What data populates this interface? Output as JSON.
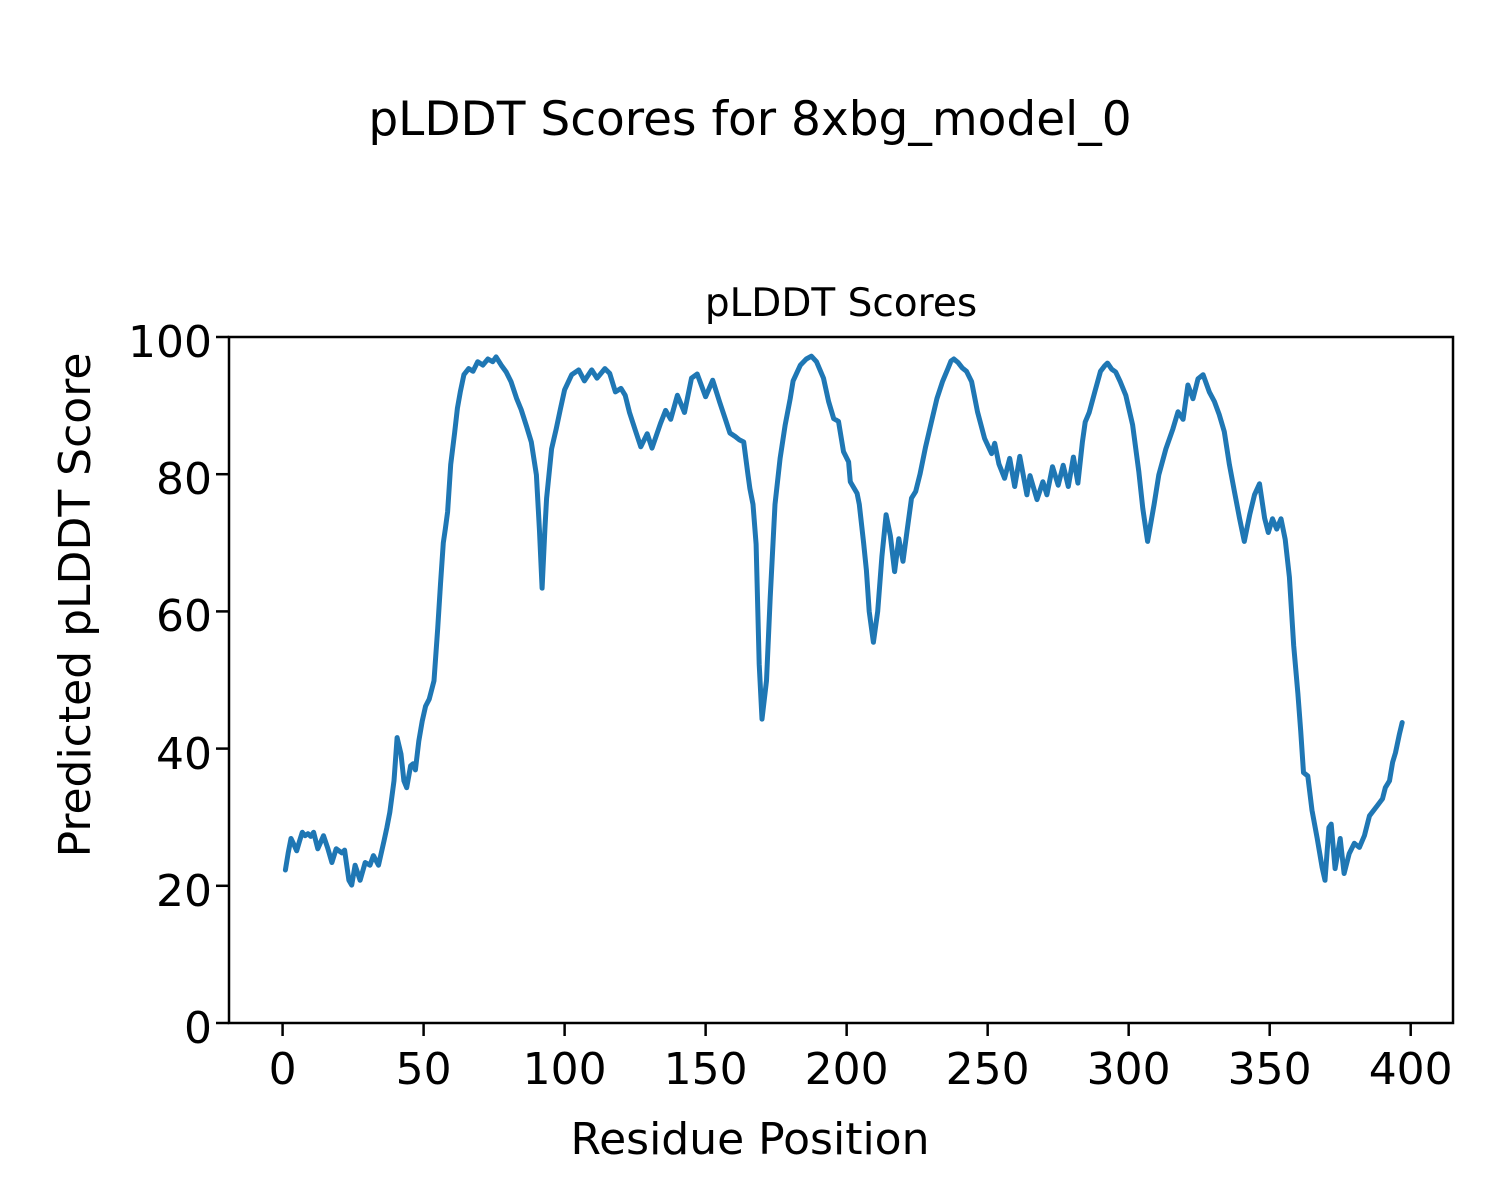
{
  "figure": {
    "suptitle": "pLDDT Scores for 8xbg_model_0",
    "axes_title": "pLDDT Scores",
    "xlabel": "Residue Position",
    "ylabel": "Predicted pLDDT Score"
  },
  "chart_data": {
    "type": "line",
    "title": "pLDDT Scores",
    "suptitle": "pLDDT Scores for 8xbg_model_0",
    "xlabel": "Residue Position",
    "ylabel": "Predicted pLDDT Score",
    "xlim": [
      -19,
      415
    ],
    "ylim": [
      0,
      100
    ],
    "x_ticks": [
      0,
      50,
      100,
      150,
      200,
      250,
      300,
      350,
      400
    ],
    "x_tick_labels": [
      "0",
      "50",
      "100",
      "150",
      "200",
      "250",
      "300",
      "350",
      "400"
    ],
    "y_ticks": [
      0,
      20,
      40,
      60,
      80,
      100
    ],
    "y_tick_labels": [
      "0",
      "20",
      "40",
      "60",
      "80",
      "100"
    ],
    "grid": false,
    "legend": "none",
    "line_color": "#1f77b4",
    "axis_color": "#000000",
    "background_color": "#ffffff",
    "series": [
      {
        "name": "pLDDT",
        "x": [
          1,
          2,
          3,
          4,
          5,
          6,
          7,
          8,
          9,
          10,
          11,
          12.5,
          14.5,
          16,
          17.5,
          19,
          21,
          22,
          23.5,
          24.5,
          25.7,
          27.5,
          29.3,
          31,
          32.2,
          34,
          36,
          37,
          38,
          39.5,
          40.6,
          42,
          43,
          44,
          45.4,
          46.3,
          47.1,
          48.3,
          49.5,
          50.7,
          52,
          53.7,
          55,
          56,
          57,
          57.7,
          58.5,
          59.6,
          61,
          62,
          63,
          64.3,
          66,
          67.5,
          69.2,
          71,
          72.8,
          74.5,
          75.7,
          77.5,
          79.3,
          81,
          83,
          84.6,
          86.5,
          88.2,
          90,
          91.1,
          92,
          93,
          93.6,
          95.4,
          97,
          98.5,
          100,
          102.5,
          105,
          107,
          109.6,
          111.5,
          114.3,
          116,
          118,
          120,
          121.5,
          123,
          125,
          127,
          129.3,
          131,
          134,
          135.8,
          137.6,
          140,
          142.5,
          145,
          147,
          150,
          152.5,
          155,
          157,
          158.6,
          160.5,
          162,
          163.5,
          165,
          165.7,
          166.8,
          167.9,
          169,
          170,
          171.6,
          172.9,
          174.6,
          176.4,
          178.2,
          180,
          181,
          183.6,
          185.7,
          187.5,
          189.3,
          191.8,
          193.6,
          195.4,
          197.1,
          198.9,
          200.7,
          201.3,
          203.7,
          204.5,
          206,
          207,
          208,
          209.5,
          211,
          212.5,
          214,
          215.5,
          217,
          218.5,
          220,
          221.5,
          223,
          224.5,
          226,
          228,
          230,
          232,
          234,
          236,
          237,
          238,
          239.5,
          241,
          242.5,
          244.3,
          246.4,
          248.9,
          251.4,
          252.5,
          254,
          256,
          257.8,
          259.6,
          261.4,
          263.9,
          265,
          267.5,
          269.6,
          271,
          273,
          275,
          276.8,
          278.6,
          280.4,
          282,
          283.6,
          284.6,
          286,
          288,
          290,
          291.5,
          292.5,
          294,
          295.4,
          297,
          299,
          301.4,
          303.6,
          305,
          306.7,
          309,
          310.7,
          313.2,
          315.7,
          317.5,
          319.3,
          321,
          322.8,
          324.6,
          326.4,
          328.6,
          330.4,
          332.1,
          333.9,
          335.7,
          337.5,
          339.3,
          341,
          342.9,
          344.6,
          346.4,
          348.2,
          349.5,
          351,
          352.5,
          354,
          355.5,
          357,
          358.5,
          360,
          361,
          362,
          363.5,
          365,
          366.8,
          368.6,
          369.6,
          371,
          371.8,
          373.2,
          375,
          376.4,
          378.2,
          380,
          381.8,
          383.6,
          385.4,
          388.2,
          390,
          391,
          392.5,
          393.6,
          394.6,
          396,
          397
        ],
        "y": [
          22.3,
          24.8,
          26.9,
          26,
          25.1,
          26.5,
          27.8,
          27.3,
          27.6,
          27.2,
          27.8,
          25.4,
          27.3,
          25.5,
          23.4,
          25.4,
          24.8,
          25.2,
          20.8,
          20.1,
          23,
          20.8,
          23.4,
          23,
          24.4,
          23,
          26.6,
          28.5,
          30.7,
          35.3,
          41.6,
          39.2,
          35.3,
          34.3,
          37.5,
          37.8,
          36.9,
          41.1,
          44,
          46.2,
          47.2,
          49.9,
          57.5,
          64,
          70,
          72,
          74.5,
          81.4,
          86,
          89.6,
          92,
          94.5,
          95.4,
          95,
          96.4,
          95.9,
          96.8,
          96.4,
          97.1,
          95.9,
          94.9,
          93.5,
          91,
          89.4,
          87,
          84.7,
          79.9,
          71.7,
          63.4,
          72,
          76.5,
          83.7,
          86.6,
          89.5,
          92.3,
          94.5,
          95.2,
          93.6,
          95.2,
          94,
          95.4,
          94.7,
          92,
          92.5,
          91.5,
          89,
          86.5,
          84,
          85.9,
          83.8,
          87.4,
          89.3,
          88,
          91.5,
          89,
          94,
          94.6,
          91.3,
          93.7,
          90.5,
          88,
          86,
          85.5,
          85,
          84.7,
          80,
          77.9,
          75.6,
          69.8,
          52.3,
          44.3,
          49.9,
          62,
          75.6,
          82.3,
          87.2,
          91,
          93.6,
          95.9,
          96.8,
          97.2,
          96.4,
          94,
          90.6,
          88.1,
          87.7,
          83.3,
          81.8,
          78.9,
          77.2,
          75.6,
          70,
          66,
          60,
          55.5,
          60,
          68,
          74.1,
          71,
          65.8,
          70.6,
          67.3,
          72,
          76.5,
          77.5,
          80,
          84,
          87.5,
          91,
          93.5,
          95.5,
          96.5,
          96.8,
          96.3,
          95.5,
          95,
          93.5,
          89.1,
          85.2,
          83,
          84.5,
          81.5,
          79.4,
          82.3,
          78.2,
          82.6,
          77,
          79.8,
          76.3,
          78.9,
          77,
          81.1,
          78.4,
          81.3,
          78.2,
          82.5,
          78.7,
          84.7,
          87.6,
          89,
          92,
          95,
          95.8,
          96.2,
          95.3,
          94.9,
          93.5,
          91.5,
          87.2,
          80.4,
          75,
          70.2,
          75.6,
          79.9,
          83.7,
          86.6,
          89.1,
          88,
          93,
          91,
          93.9,
          94.5,
          92,
          90.6,
          88.7,
          86.2,
          81.4,
          77.5,
          73.6,
          70.2,
          74.1,
          77,
          78.6,
          73.6,
          71.5,
          73.5,
          72,
          73.5,
          70.5,
          65,
          55,
          48,
          42.6,
          36.5,
          36,
          31,
          27,
          22.7,
          20.8,
          28.5,
          29,
          22.5,
          26.9,
          21.8,
          24.7,
          26.2,
          25.6,
          27.3,
          30.2,
          31.7,
          32.7,
          34.3,
          35.3,
          38,
          39.4,
          42.1,
          43.8
        ]
      }
    ]
  }
}
